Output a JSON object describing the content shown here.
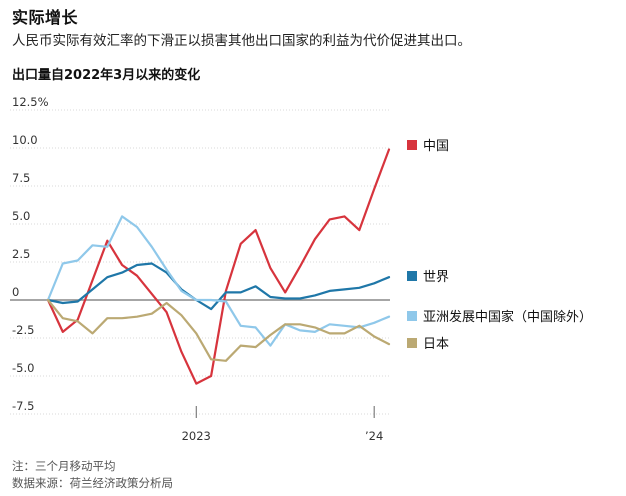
{
  "header": {
    "title": "实际增长",
    "subtitle": "人民币实际有效汇率的下滑正以损害其他出口国家的利益为代价促进其出口。",
    "chart_title": "出口量自2022年3月以来的变化"
  },
  "footer": {
    "note": "注：三个月移动平均",
    "source": "数据来源：荷兰经济政策分析局"
  },
  "chart_data": {
    "type": "line",
    "x": [
      "2022-03",
      "2022-04",
      "2022-05",
      "2022-06",
      "2022-07",
      "2022-08",
      "2022-09",
      "2022-10",
      "2022-11",
      "2022-12",
      "2023-01",
      "2023-02",
      "2023-03",
      "2023-04",
      "2023-05",
      "2023-06",
      "2023-07",
      "2023-08",
      "2023-09",
      "2023-10",
      "2023-11",
      "2023-12",
      "2024-01",
      "2024-02"
    ],
    "x_tick_labels": [
      {
        "date": "2023-01",
        "label": "2023"
      },
      {
        "date": "2024-01",
        "label": "’24"
      }
    ],
    "ylim": [
      -7.5,
      12.5
    ],
    "y_ticks": [
      12.5,
      10.0,
      7.5,
      5.0,
      2.5,
      0,
      -2.5,
      -5.0,
      -7.5
    ],
    "y_tick_labels": [
      "12.5%",
      "10.0",
      "7.5",
      "5.0",
      "2.5",
      "0",
      "-2.5",
      "-5.0",
      "-7.5"
    ],
    "grid": true,
    "series": [
      {
        "name": "中国",
        "color": "#d7343d",
        "values": [
          0,
          -2.1,
          -1.3,
          1.3,
          3.9,
          2.3,
          1.6,
          0.4,
          -0.8,
          -3.4,
          -5.5,
          -5.0,
          0.6,
          3.7,
          4.6,
          2.1,
          0.5,
          2.2,
          4.0,
          5.3,
          5.5,
          4.6,
          7.3,
          9.9
        ]
      },
      {
        "name": "世界",
        "color": "#1f77a8",
        "values": [
          0,
          -0.2,
          -0.1,
          0.7,
          1.5,
          1.8,
          2.3,
          2.4,
          1.8,
          0.7,
          0.0,
          -0.6,
          0.5,
          0.5,
          0.9,
          0.2,
          0.1,
          0.1,
          0.3,
          0.6,
          0.7,
          0.8,
          1.1,
          1.5
        ]
      },
      {
        "name": "亚洲发展中国家（中国除外）",
        "color": "#8fc8ea",
        "values": [
          0,
          2.4,
          2.6,
          3.6,
          3.5,
          5.5,
          4.8,
          3.5,
          2.0,
          0.6,
          0.0,
          0.0,
          -0.1,
          -1.7,
          -1.8,
          -3.0,
          -1.6,
          -2.0,
          -2.1,
          -1.6,
          -1.7,
          -1.8,
          -1.5,
          -1.1
        ]
      },
      {
        "name": "日本",
        "color": "#bba973",
        "values": [
          0,
          -1.2,
          -1.4,
          -2.2,
          -1.2,
          -1.2,
          -1.1,
          -0.9,
          -0.2,
          -1.0,
          -2.2,
          -3.9,
          -4.0,
          -3.0,
          -3.1,
          -2.3,
          -1.6,
          -1.6,
          -1.8,
          -2.2,
          -2.2,
          -1.7,
          -2.4,
          -2.9
        ]
      }
    ]
  }
}
